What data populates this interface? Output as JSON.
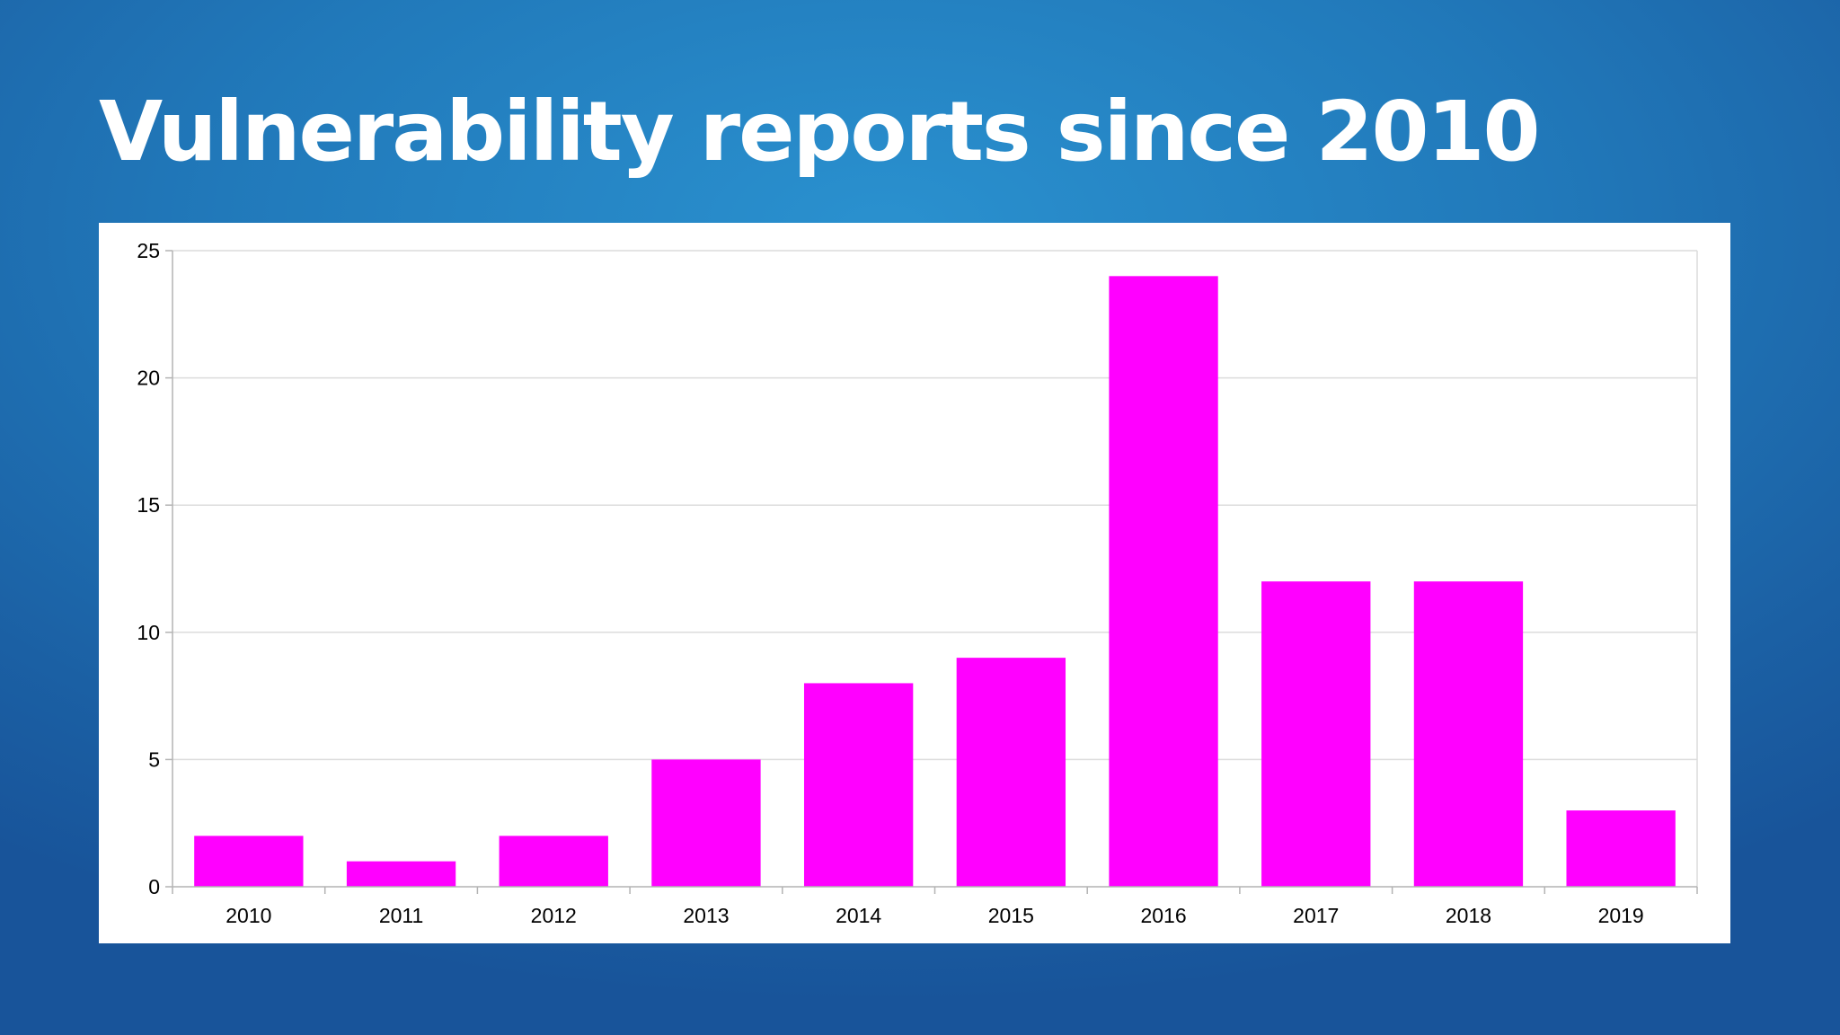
{
  "slide": {
    "title": "Vulnerability reports since 2010"
  },
  "colors": {
    "background": "#2179ba",
    "bar": "#ff00ff",
    "gridline": "#dcdcdc",
    "axis": "#b3b3b3",
    "panel": "#ffffff",
    "title": "#ffffff"
  },
  "chart_data": {
    "type": "bar",
    "title": "",
    "xlabel": "",
    "ylabel": "",
    "categories": [
      "2010",
      "2011",
      "2012",
      "2013",
      "2014",
      "2015",
      "2016",
      "2017",
      "2018",
      "2019"
    ],
    "values": [
      2,
      1,
      2,
      5,
      8,
      9,
      24,
      12,
      12,
      3
    ],
    "ylim": [
      0,
      25
    ],
    "yticks": [
      0,
      5,
      10,
      15,
      20,
      25
    ],
    "grid": true,
    "legend": "none"
  }
}
